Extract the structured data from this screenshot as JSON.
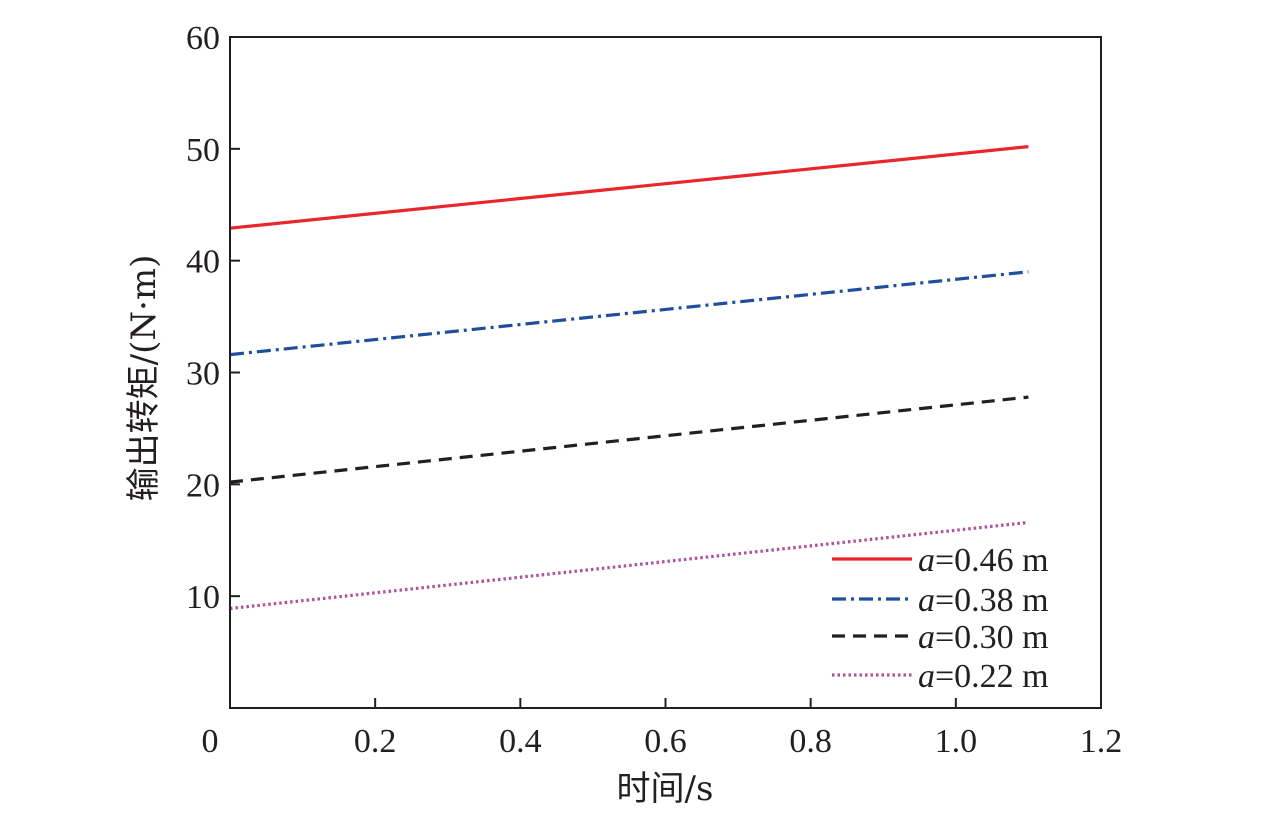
{
  "chart_data": {
    "type": "line",
    "title": "",
    "xlabel": "时间/s",
    "ylabel": "输出转矩/(N·m)",
    "xlim": [
      0,
      1.2
    ],
    "ylim": [
      0,
      60
    ],
    "x_ticks": [
      "0",
      "0.2",
      "0.4",
      "0.6",
      "0.8",
      "1.0",
      "1.2"
    ],
    "y_ticks": [
      "10",
      "20",
      "30",
      "40",
      "50",
      "60"
    ],
    "grid": false,
    "legend_position": "bottom-right",
    "series": [
      {
        "name": "a=0.46 m",
        "name_var": "a",
        "name_rest": "=0.46 m",
        "color": "#e8262b",
        "style": "solid",
        "x": [
          0,
          1.1
        ],
        "y": [
          42.9,
          50.2
        ]
      },
      {
        "name": "a=0.38 m",
        "name_var": "a",
        "name_rest": "=0.38 m",
        "color": "#1f4e9c",
        "style": "dash-dot",
        "x": [
          0,
          1.1
        ],
        "y": [
          31.6,
          39.0
        ]
      },
      {
        "name": "a=0.30 m",
        "name_var": "a",
        "name_rest": "=0.30 m",
        "color": "#231f20",
        "style": "dashed",
        "x": [
          0,
          1.1
        ],
        "y": [
          20.2,
          27.8
        ]
      },
      {
        "name": "a=0.22 m",
        "name_var": "a",
        "name_rest": "=0.22 m",
        "color": "#b0509d",
        "style": "dotted",
        "x": [
          0,
          1.1
        ],
        "y": [
          8.9,
          16.6
        ]
      }
    ]
  }
}
